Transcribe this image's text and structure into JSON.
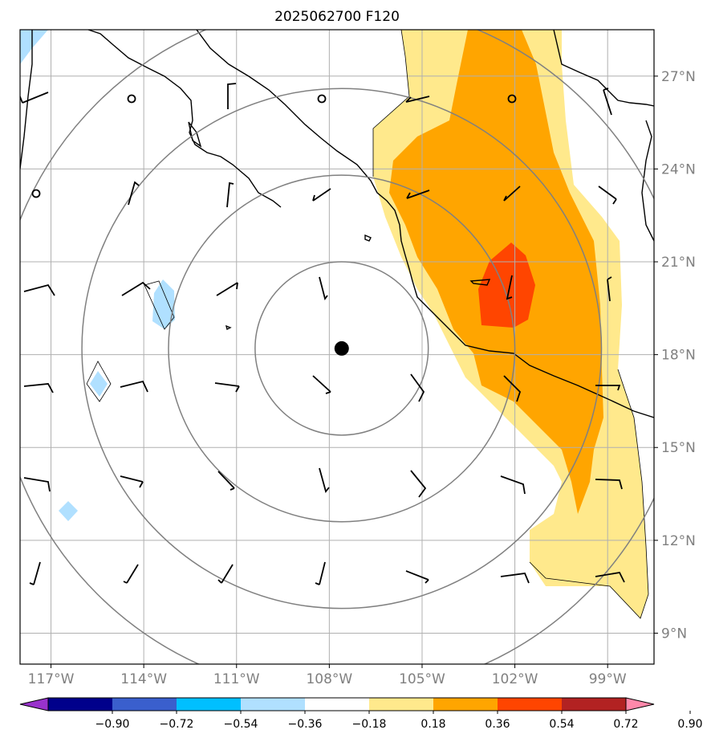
{
  "title": "2025062700 F120",
  "map": {
    "lon_range": [
      -118,
      -97.5
    ],
    "lat_range": [
      8,
      28.5
    ],
    "lon_ticks": [
      {
        "value": -117,
        "label": "117°W"
      },
      {
        "value": -114,
        "label": "114°W"
      },
      {
        "value": -111,
        "label": "111°W"
      },
      {
        "value": -108,
        "label": "108°W"
      },
      {
        "value": -105,
        "label": "105°W"
      },
      {
        "value": -102,
        "label": "102°W"
      },
      {
        "value": -99,
        "label": "99°W"
      }
    ],
    "lat_ticks": [
      {
        "value": 27,
        "label": "27°N"
      },
      {
        "value": 24,
        "label": "24°N"
      },
      {
        "value": 21,
        "label": "21°N"
      },
      {
        "value": 18,
        "label": "18°N"
      },
      {
        "value": 15,
        "label": "15°N"
      },
      {
        "value": 12,
        "label": "12°N"
      },
      {
        "value": 9,
        "label": "9°N"
      }
    ],
    "storm_center": {
      "lon": -107.6,
      "lat": 18.2
    },
    "range_rings_deg": [
      2.8,
      5.6,
      8.4,
      11.2
    ],
    "gridlines": true
  },
  "colorbar": {
    "levels": [
      "−0.90",
      "−0.72",
      "−0.54",
      "−0.36",
      "−0.18",
      "0.18",
      "0.36",
      "0.54",
      "0.72",
      "0.90"
    ],
    "colors": [
      "#9932cc",
      "#00008b",
      "#3a5fcd",
      "#00bfff",
      "#b0e0ff",
      "#ffffff",
      "#ffe98c",
      "#ffa500",
      "#ff4500",
      "#b22222",
      "#ff88aa"
    ],
    "extend": "both"
  },
  "colors": {
    "shade_018_036": "#ffe98c",
    "shade_036_054": "#ffa500",
    "shade_054_072": "#ff4500",
    "shade_neg": "#b0e0ff",
    "rings": "#808080",
    "grid": "#b0b0b0",
    "coast": "#000000"
  }
}
